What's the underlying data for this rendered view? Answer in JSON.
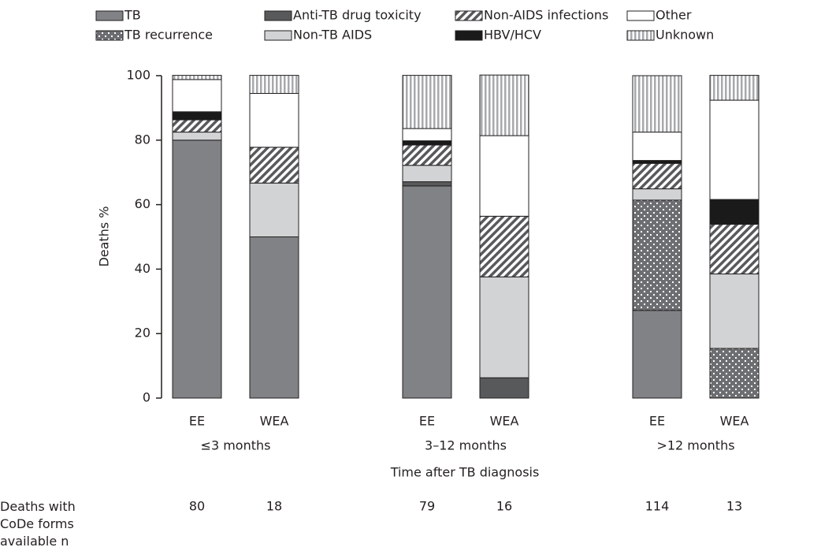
{
  "chart_data": {
    "type": "stacked-bar",
    "y_label": "Deaths %",
    "x_label": "Time after TB diagnosis",
    "categories": [
      "EE",
      "WEA",
      "EE",
      "WEA",
      "EE",
      "WEA"
    ],
    "groups": [
      "≤3 months",
      "3–12 months",
      ">12 months"
    ],
    "ylim": [
      0,
      100
    ],
    "yticks": [
      0,
      20,
      40,
      60,
      80,
      100
    ],
    "series": [
      {
        "name": "TB",
        "color": "#808285",
        "pattern": null,
        "values": [
          80,
          50,
          65.8,
          0,
          27.2,
          0
        ]
      },
      {
        "name": "TB recurrence",
        "color": "#6d6e71",
        "pattern": "dots",
        "values": [
          0,
          0,
          0,
          0,
          34.2,
          15.4
        ]
      },
      {
        "name": "Anti-TB drug toxicity",
        "color": "#58595b",
        "pattern": null,
        "values": [
          0,
          0,
          1.3,
          6.3,
          0,
          0
        ]
      },
      {
        "name": "Non-TB AIDS",
        "color": "#d1d3d4",
        "pattern": null,
        "values": [
          2.5,
          16.7,
          5.1,
          31.3,
          3.5,
          23.1
        ]
      },
      {
        "name": "Non-AIDS infections",
        "color": "#58595b",
        "pattern": "hatch",
        "values": [
          3.8,
          11.1,
          6.3,
          18.8,
          7.9,
          15.4
        ]
      },
      {
        "name": "HBV/HCV",
        "color": "#1a1a1a",
        "pattern": null,
        "values": [
          2.5,
          0,
          1.3,
          0,
          0.9,
          7.7
        ]
      },
      {
        "name": "Other",
        "color": "#ffffff",
        "pattern": null,
        "values": [
          10,
          16.7,
          3.8,
          25,
          8.8,
          30.8
        ]
      },
      {
        "name": "Unknown",
        "color": "#a7a9ac",
        "pattern": "vstripes",
        "values": [
          1.3,
          5.6,
          16.5,
          18.8,
          17.5,
          7.7
        ]
      }
    ],
    "counts": {
      "label": "Deaths with CoDe forms available n",
      "values": [
        80,
        18,
        79,
        16,
        114,
        13
      ]
    }
  }
}
